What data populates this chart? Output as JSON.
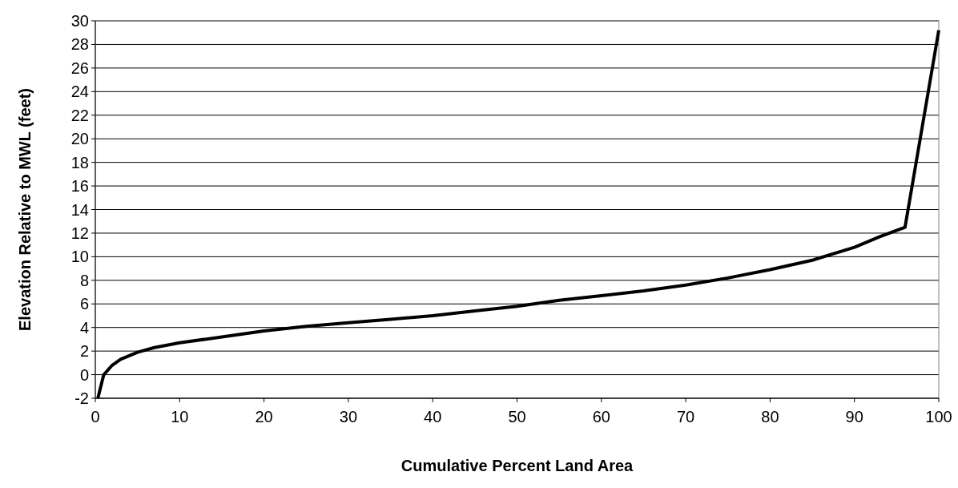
{
  "chart_data": {
    "type": "line",
    "xlabel": "Cumulative Percent Land Area",
    "ylabel": "Elevation Relative to MWL (feet)",
    "xlim": [
      0,
      100
    ],
    "xticks": [
      0,
      10,
      20,
      30,
      40,
      50,
      60,
      70,
      80,
      90,
      100
    ],
    "ylim": [
      -2,
      30
    ],
    "yticks": [
      -2,
      0,
      2,
      4,
      6,
      8,
      10,
      12,
      14,
      16,
      18,
      20,
      22,
      24,
      26,
      28,
      30
    ],
    "grid": "y",
    "marker": "none",
    "line_style": "solid",
    "series": [
      {
        "color": "#000000",
        "x": [
          0.3,
          1,
          2,
          3,
          5,
          7,
          10,
          15,
          20,
          25,
          30,
          35,
          40,
          45,
          50,
          55,
          60,
          65,
          70,
          75,
          80,
          85,
          90,
          93,
          96,
          100
        ],
        "values": [
          -2,
          0,
          0.8,
          1.3,
          1.9,
          2.3,
          2.7,
          3.2,
          3.7,
          4.1,
          4.4,
          4.7,
          5,
          5.4,
          5.8,
          6.3,
          6.7,
          7.1,
          7.6,
          8.2,
          8.9,
          9.7,
          10.8,
          11.7,
          12.5,
          29.2
        ]
      }
    ]
  }
}
